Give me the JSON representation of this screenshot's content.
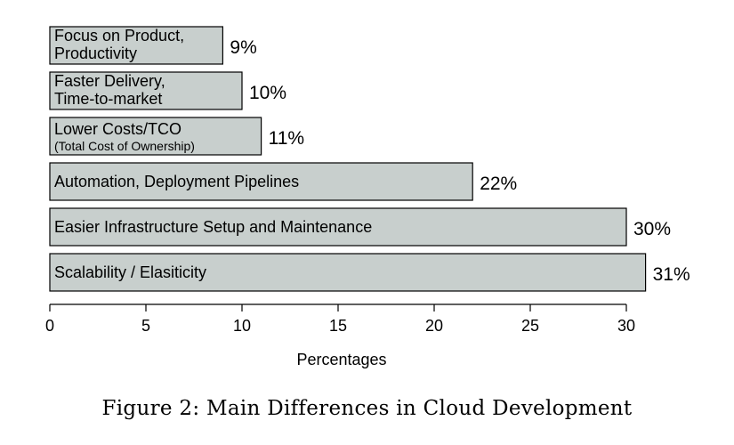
{
  "caption": "Figure 2: Main Differences in Cloud Development",
  "chart_data": {
    "type": "bar",
    "orientation": "horizontal",
    "categories": [
      {
        "lines": [
          "Focus on Product,",
          "Productivity"
        ]
      },
      {
        "lines": [
          "Faster Delivery,",
          "Time-to-market"
        ]
      },
      {
        "lines": [
          "Lower Costs/TCO"
        ],
        "sub": "(Total Cost of Ownership)"
      },
      {
        "lines": [
          "Automation, Deployment Pipelines"
        ]
      },
      {
        "lines": [
          "Easier Infrastructure Setup and Maintenance"
        ]
      },
      {
        "lines": [
          "Scalability / Elasiticity"
        ]
      }
    ],
    "values": [
      9,
      10,
      11,
      22,
      30,
      31
    ],
    "value_labels": [
      "9%",
      "10%",
      "11%",
      "22%",
      "30%",
      "31%"
    ],
    "xlabel": "Percentages",
    "xticks": [
      0,
      5,
      10,
      15,
      20,
      25,
      30
    ],
    "xlim": [
      0,
      30
    ],
    "grid": false,
    "colors": {
      "bar_fill": "#c8cfcd",
      "bar_stroke": "#000000"
    }
  }
}
